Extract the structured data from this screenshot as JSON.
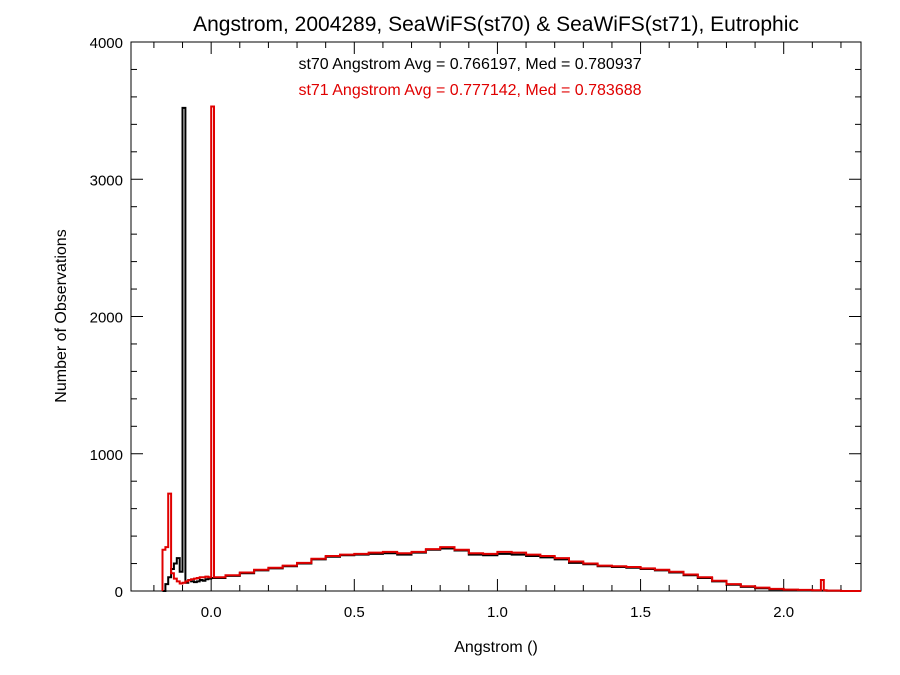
{
  "chart_data": {
    "type": "line",
    "style": "step histogram",
    "title": "Angstrom, 2004289, SeaWiFS(st70) & SeaWiFS(st71), Eutrophic",
    "xlabel": "Angstrom ()",
    "ylabel": "Number of Observations",
    "xlim": [
      -0.28,
      2.27
    ],
    "ylim": [
      0,
      4000
    ],
    "xticks": [
      0.0,
      0.5,
      1.0,
      1.5,
      2.0
    ],
    "xtick_labels": [
      "0.0",
      "0.5",
      "1.0",
      "1.5",
      "2.0"
    ],
    "yticks": [
      0,
      1000,
      2000,
      3000,
      4000
    ],
    "ytick_labels": [
      "0",
      "1000",
      "2000",
      "3000",
      "4000"
    ],
    "grid": false,
    "annotations": [
      {
        "text": "st70 Angstrom Avg = 0.766197, Med = 0.780937",
        "color": "#000000"
      },
      {
        "text": "st71 Angstrom Avg = 0.777142, Med = 0.783688",
        "color": "#e00000"
      }
    ],
    "series": [
      {
        "color": "#000000",
        "x": [
          -0.17,
          -0.16,
          -0.15,
          -0.14,
          -0.13,
          -0.12,
          -0.11,
          -0.1,
          -0.09,
          -0.08,
          -0.07,
          -0.06,
          -0.05,
          -0.04,
          -0.03,
          -0.02,
          -0.01,
          0.0,
          0.05,
          0.1,
          0.15,
          0.2,
          0.25,
          0.3,
          0.35,
          0.4,
          0.45,
          0.5,
          0.55,
          0.6,
          0.65,
          0.7,
          0.75,
          0.8,
          0.85,
          0.9,
          0.95,
          1.0,
          1.05,
          1.1,
          1.15,
          1.2,
          1.25,
          1.3,
          1.35,
          1.4,
          1.45,
          1.5,
          1.55,
          1.6,
          1.65,
          1.7,
          1.75,
          1.8,
          1.85,
          1.9,
          1.95,
          2.0,
          2.05,
          2.1,
          2.13,
          2.15,
          2.2
        ],
        "y": [
          0,
          50,
          100,
          160,
          200,
          240,
          140,
          3520,
          60,
          80,
          70,
          65,
          70,
          80,
          75,
          85,
          90,
          95,
          110,
          130,
          150,
          165,
          180,
          200,
          230,
          250,
          260,
          265,
          270,
          275,
          265,
          280,
          300,
          310,
          295,
          265,
          260,
          270,
          265,
          255,
          245,
          230,
          205,
          195,
          180,
          175,
          170,
          160,
          150,
          135,
          115,
          95,
          70,
          45,
          30,
          20,
          12,
          8,
          5,
          3,
          3,
          2,
          0
        ]
      },
      {
        "color": "#e00000",
        "x": [
          -0.17,
          -0.16,
          -0.15,
          -0.14,
          -0.13,
          -0.12,
          -0.11,
          -0.1,
          -0.09,
          -0.08,
          -0.07,
          -0.06,
          -0.05,
          -0.04,
          -0.03,
          -0.02,
          -0.01,
          0.0,
          0.01,
          0.05,
          0.1,
          0.15,
          0.2,
          0.25,
          0.3,
          0.35,
          0.4,
          0.45,
          0.5,
          0.55,
          0.6,
          0.65,
          0.7,
          0.75,
          0.8,
          0.85,
          0.9,
          0.95,
          1.0,
          1.05,
          1.1,
          1.15,
          1.2,
          1.25,
          1.3,
          1.35,
          1.4,
          1.45,
          1.5,
          1.55,
          1.6,
          1.65,
          1.7,
          1.75,
          1.8,
          1.85,
          1.9,
          1.95,
          2.0,
          2.05,
          2.1,
          2.13,
          2.14,
          2.15,
          2.2
        ],
        "y": [
          300,
          320,
          710,
          130,
          90,
          70,
          55,
          60,
          70,
          80,
          85,
          90,
          95,
          100,
          100,
          105,
          100,
          3530,
          100,
          115,
          135,
          155,
          170,
          185,
          205,
          235,
          255,
          265,
          270,
          280,
          285,
          275,
          285,
          305,
          320,
          300,
          275,
          270,
          285,
          280,
          265,
          255,
          240,
          215,
          200,
          185,
          180,
          175,
          165,
          155,
          140,
          120,
          100,
          75,
          50,
          35,
          25,
          15,
          10,
          8,
          5,
          80,
          5,
          3,
          0
        ]
      }
    ]
  }
}
